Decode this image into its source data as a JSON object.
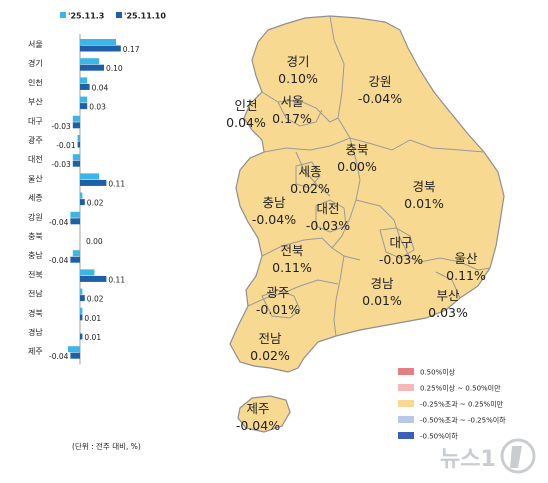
{
  "chart_data": [
    {
      "type": "bar",
      "orientation": "horizontal",
      "categories": [
        "서울",
        "경기",
        "인천",
        "부산",
        "대구",
        "광주",
        "대전",
        "울산",
        "세종",
        "강원",
        "충북",
        "충남",
        "전북",
        "전남",
        "경북",
        "경남",
        "제주"
      ],
      "series": [
        {
          "name": "'25.11.3",
          "color": "#3cb6e6",
          "values": [
            0.15,
            0.08,
            0.03,
            0.03,
            -0.03,
            -0.01,
            -0.03,
            0.08,
            0.01,
            -0.04,
            0.0,
            -0.03,
            0.06,
            0.01,
            0.01,
            0.0,
            -0.05
          ]
        },
        {
          "name": "'25.11.10",
          "color": "#1f5fa8",
          "values": [
            0.17,
            0.1,
            0.04,
            0.03,
            -0.03,
            -0.01,
            -0.03,
            0.11,
            0.02,
            -0.04,
            0.0,
            -0.04,
            0.11,
            0.02,
            0.01,
            0.01,
            -0.04
          ]
        }
      ],
      "data_labels": [
        "0.17",
        "0.10",
        "0.04",
        "0.03",
        "-0.03",
        "-0.01",
        "-0.03",
        "0.11",
        "0.02",
        "-0.04",
        "0.00",
        "-0.04",
        "0.11",
        "0.02",
        "0.01",
        "0.01",
        "-0.04"
      ],
      "unit_note": "(단위 : 전주 대비, %)",
      "legend_placement": "top"
    },
    {
      "type": "choropleth",
      "regions": [
        {
          "id": "gyeonggi",
          "name": "경기",
          "value": "0.10%"
        },
        {
          "id": "gangwon",
          "name": "강원",
          "value": "-0.04%"
        },
        {
          "id": "incheon",
          "name": "인천",
          "value": "0.04%"
        },
        {
          "id": "seoul",
          "name": "서울",
          "value": "0.17%"
        },
        {
          "id": "chungbuk",
          "name": "충북",
          "value": "0.00%"
        },
        {
          "id": "sejong",
          "name": "세종",
          "value": "0.02%"
        },
        {
          "id": "chungnam",
          "name": "충남",
          "value": "-0.04%"
        },
        {
          "id": "daejeon",
          "name": "대전",
          "value": "-0.03%"
        },
        {
          "id": "gyeongbuk",
          "name": "경북",
          "value": "0.01%"
        },
        {
          "id": "daegu",
          "name": "대구",
          "value": "-0.03%"
        },
        {
          "id": "jeonbuk",
          "name": "전북",
          "value": "0.11%"
        },
        {
          "id": "ulsan",
          "name": "울산",
          "value": "0.11%"
        },
        {
          "id": "gwangju",
          "name": "광주",
          "value": "-0.01%"
        },
        {
          "id": "gyeongnam",
          "name": "경남",
          "value": "0.01%"
        },
        {
          "id": "busan",
          "name": "부산",
          "value": "0.03%"
        },
        {
          "id": "jeonnam",
          "name": "전남",
          "value": "0.02%"
        },
        {
          "id": "jeju",
          "name": "제주",
          "value": "-0.04%"
        }
      ],
      "map_fill": "#f7d992",
      "map_stroke": "#9a9a9a",
      "legend": [
        {
          "label": "0.50%이상",
          "color": "#e08080"
        },
        {
          "label": "0.25%이상 ~ 0.50%미만",
          "color": "#f4b8b8"
        },
        {
          "label": "-0.25%초과 ~ 0.25%미만",
          "color": "#f7d992"
        },
        {
          "label": "-0.50%초과 ~ -0.25%이하",
          "color": "#b8c8e8"
        },
        {
          "label": "-0.50%이하",
          "color": "#3a60b8"
        }
      ],
      "legend_placement": "bottom-right"
    }
  ],
  "watermark": "뉴스1"
}
